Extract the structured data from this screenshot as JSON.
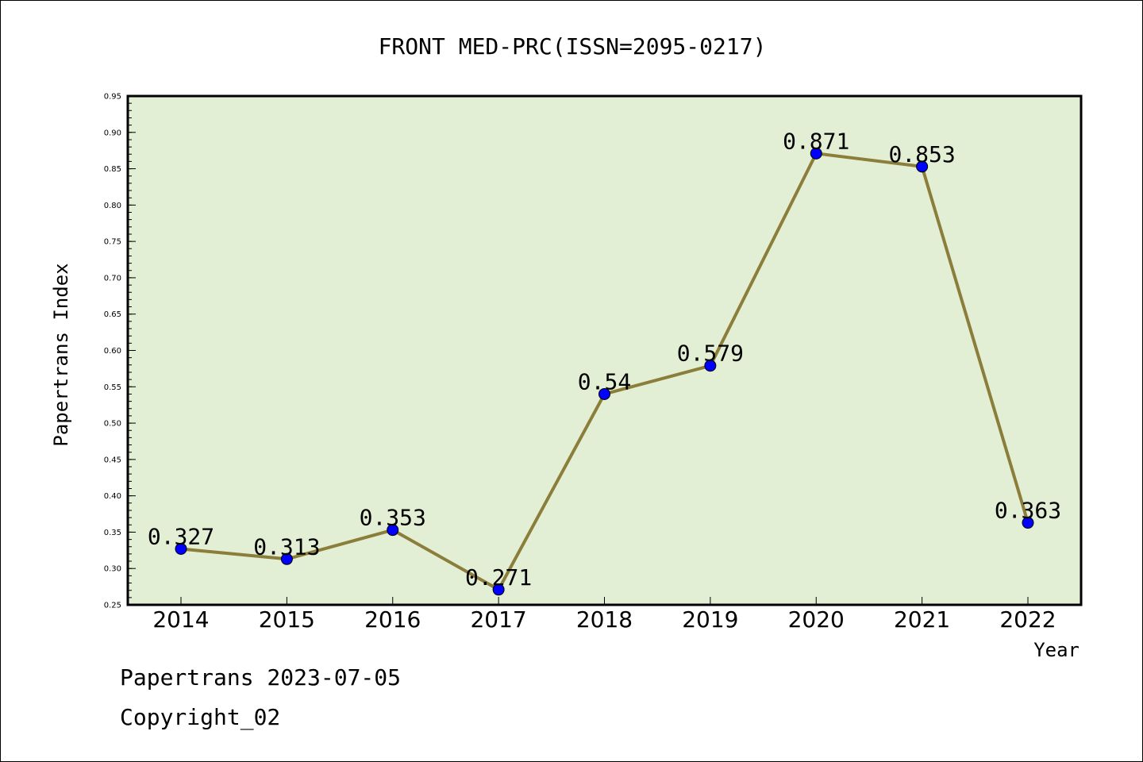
{
  "chart_data": {
    "type": "line",
    "title": "FRONT MED-PRC(ISSN=2095-0217)",
    "xlabel": "Year",
    "ylabel": "Papertrans Index",
    "categories": [
      "2014",
      "2015",
      "2016",
      "2017",
      "2018",
      "2019",
      "2020",
      "2021",
      "2022"
    ],
    "series": [
      {
        "values": [
          0.327,
          0.313,
          0.353,
          0.271,
          0.54,
          0.579,
          0.871,
          0.853,
          0.363
        ],
        "labels": [
          "0.327",
          "0.313",
          "0.353",
          "0.271",
          "0.54",
          "0.579",
          "0.871",
          "0.853",
          "0.363"
        ]
      }
    ],
    "ylim": [
      0.25,
      0.95
    ],
    "yticks": [
      "0.25",
      "0.30",
      "0.35",
      "0.40",
      "0.45",
      "0.50",
      "0.55",
      "0.60",
      "0.65",
      "0.70",
      "0.75",
      "0.80",
      "0.85",
      "0.90",
      "0.95"
    ],
    "grid": false,
    "legend": "none"
  },
  "colors": {
    "plot_background": "#e2efd5",
    "line": "#8b7d3a",
    "marker": "#0000ff",
    "text": "#000000"
  },
  "footer": {
    "line1": "Papertrans 2023-07-05",
    "line2": "Copyright_02"
  }
}
